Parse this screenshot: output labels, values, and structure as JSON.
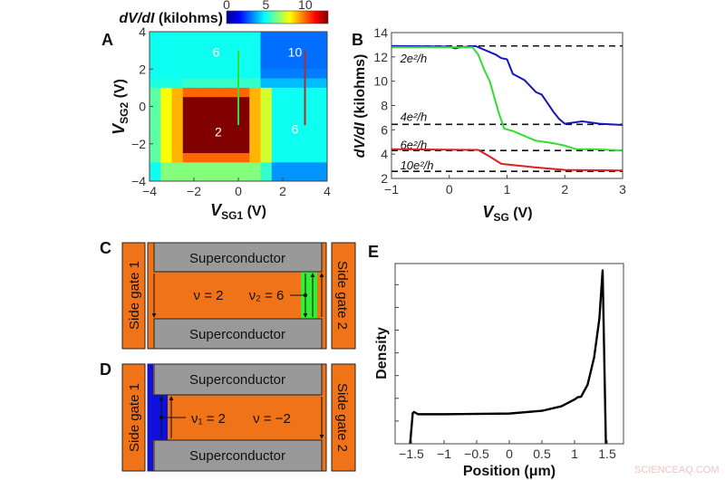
{
  "watermark": "SCIENCEAQ.COM",
  "colors": {
    "orange": "#f07318",
    "gray": "#999999",
    "green": "#33ee33",
    "blue": "#1010dd",
    "red": "#dd2020"
  },
  "chart_data": [
    {
      "panel": "A",
      "type": "heatmap",
      "xlabel": "V_SG1 (V)",
      "xlabel_main": "V",
      "xlabel_sub": "SG1",
      "xlabel_unit": " (V)",
      "ylabel": "V_SG2 (V)",
      "ylabel_main": "V",
      "ylabel_sub": "SG2",
      "ylabel_unit": " (V)",
      "xlim": [
        -4,
        4
      ],
      "ylim": [
        -4,
        4
      ],
      "xticks": [
        "-4",
        "-2",
        "0",
        "2",
        "4"
      ],
      "yticks": [
        "4",
        "2",
        "0",
        "-2",
        "-4"
      ],
      "colorbar": {
        "label": "dV/dI (kilohms)",
        "label_italic": "dV/dI",
        "label_unit": " (kilohms)",
        "range": [
          0,
          12.9
        ],
        "ticks": [
          "0",
          "5",
          "10"
        ],
        "colormap": "jet",
        "placement": "top"
      },
      "grid_step": 0.5,
      "values_rows_top_to_bottom": [
        [
          5,
          5,
          5,
          5,
          5,
          5,
          5,
          5,
          5,
          5,
          3,
          3,
          3,
          3,
          3,
          3
        ],
        [
          5,
          5,
          5,
          5,
          5,
          5,
          5,
          5,
          5,
          5,
          3,
          3,
          3,
          3,
          3,
          3
        ],
        [
          5,
          5,
          5,
          5,
          5,
          5,
          5,
          5,
          5,
          5,
          3,
          3,
          3,
          3,
          3,
          3
        ],
        [
          5,
          5,
          5,
          5,
          5,
          5,
          5,
          5,
          5,
          5,
          3,
          3,
          3,
          3,
          3,
          3
        ],
        [
          5,
          5,
          5,
          5,
          5,
          5,
          5,
          5,
          5,
          5,
          3.2,
          3.2,
          3.2,
          3.2,
          3.2,
          3.2
        ],
        [
          5.2,
          5.2,
          5.2,
          5.5,
          5.5,
          5.5,
          5.5,
          5.5,
          5.5,
          5.5,
          4,
          4,
          4,
          4,
          4,
          4
        ],
        [
          6,
          8,
          9,
          10,
          10,
          10,
          10,
          10,
          10,
          9,
          7.5,
          5,
          5,
          5,
          5,
          5
        ],
        [
          6,
          8,
          9,
          13,
          13,
          13,
          13,
          13,
          13,
          9,
          7.5,
          5,
          5,
          5,
          5,
          5
        ],
        [
          6,
          8,
          9,
          13,
          13,
          13,
          13,
          13,
          13,
          9,
          7.5,
          5,
          5,
          5,
          5,
          5
        ],
        [
          6,
          8,
          9,
          13,
          13,
          13,
          13,
          13,
          13,
          9,
          7.5,
          5,
          5,
          5,
          5,
          5
        ],
        [
          6,
          8,
          9,
          13,
          13,
          13,
          13,
          13,
          13,
          9,
          7.5,
          5,
          5,
          5,
          5,
          5
        ],
        [
          6,
          8,
          9,
          13,
          13,
          13,
          13,
          13,
          13,
          9,
          7.5,
          5,
          5,
          5,
          5,
          5
        ],
        [
          6,
          8,
          9,
          13,
          13,
          13,
          13,
          13,
          13,
          9,
          7.5,
          5,
          5,
          5,
          5,
          5
        ],
        [
          6,
          8,
          9,
          10,
          10,
          10,
          10,
          10,
          10,
          9,
          7.5,
          5,
          5,
          5,
          5,
          5
        ],
        [
          5,
          6.5,
          6.5,
          6.5,
          6.5,
          6.5,
          6.5,
          6.5,
          6.5,
          6.5,
          5.5,
          3.5,
          3.5,
          3.5,
          3.5,
          3.5
        ],
        [
          5,
          6.5,
          6.5,
          6.5,
          6.5,
          6.5,
          6.5,
          6.5,
          6.5,
          6.5,
          5.5,
          3.5,
          3.5,
          3.5,
          3.5,
          3.5
        ]
      ],
      "cuts": [
        {
          "color": "#33dd33",
          "x": 0,
          "y": [
            3,
            -1
          ]
        },
        {
          "color": "#aa3030",
          "x": 3,
          "y": [
            3,
            -1
          ]
        }
      ],
      "annotations": [
        {
          "text": "6",
          "x": -1,
          "y": 2.9
        },
        {
          "text": "10",
          "x": 2.55,
          "y": 2.9
        },
        {
          "text": "2",
          "x": -0.9,
          "y": -1.35
        },
        {
          "text": "6",
          "x": 2.55,
          "y": -1.2
        }
      ]
    },
    {
      "panel": "B",
      "type": "line",
      "xlabel_main": "V",
      "xlabel_sub": "SG",
      "xlabel_unit": " (V)",
      "ylabel": "dV/dI (kilohms)",
      "ylabel_italic": "dV/dI",
      "ylabel_unit": " (kilohms)",
      "xlim": [
        -1,
        3
      ],
      "ylim": [
        2,
        14
      ],
      "xticks": [
        "-1",
        "0",
        "1",
        "2",
        "3"
      ],
      "yticks": [
        "2",
        "4",
        "6",
        "8",
        "10",
        "12",
        "14"
      ],
      "series": [
        {
          "color": "#1515c0",
          "points": [
            [
              -1,
              12.9
            ],
            [
              0,
              12.85
            ],
            [
              0.1,
              12.7
            ],
            [
              0.2,
              12.8
            ],
            [
              0.45,
              12.9
            ],
            [
              0.6,
              12.6
            ],
            [
              0.8,
              12.2
            ],
            [
              0.9,
              11.9
            ],
            [
              1.0,
              11.8
            ],
            [
              1.1,
              10.6
            ],
            [
              1.3,
              10.1
            ],
            [
              1.5,
              9.1
            ],
            [
              1.6,
              8.9
            ],
            [
              1.7,
              8.2
            ],
            [
              1.8,
              7.5
            ],
            [
              1.9,
              6.9
            ],
            [
              2.0,
              6.5
            ],
            [
              2.3,
              6.7
            ],
            [
              2.6,
              6.5
            ],
            [
              3,
              6.4
            ]
          ]
        },
        {
          "color": "#33dd33",
          "points": [
            [
              -1,
              12.8
            ],
            [
              0.4,
              12.8
            ],
            [
              0.5,
              12.2
            ],
            [
              0.6,
              11
            ],
            [
              0.7,
              10
            ],
            [
              0.85,
              7.5
            ],
            [
              0.95,
              6.1
            ],
            [
              1.1,
              5.9
            ],
            [
              1.3,
              5.5
            ],
            [
              1.5,
              5.1
            ],
            [
              1.8,
              4.9
            ],
            [
              2.0,
              4.7
            ],
            [
              2.2,
              4.4
            ],
            [
              2.5,
              4.4
            ],
            [
              3,
              4.3
            ]
          ]
        },
        {
          "color": "#dd2020",
          "points": [
            [
              -1,
              4.4
            ],
            [
              0.5,
              4.35
            ],
            [
              0.7,
              3.8
            ],
            [
              0.9,
              3.2
            ],
            [
              1.1,
              3.1
            ],
            [
              1.5,
              2.9
            ],
            [
              2.0,
              2.7
            ],
            [
              3,
              2.65
            ]
          ]
        }
      ],
      "reference_lines": [
        {
          "y": 12.9,
          "label": "2e²/h",
          "label_x": -0.85,
          "label_y": 11.9
        },
        {
          "y": 6.45,
          "label": "4e²/h",
          "label_x": -0.85,
          "label_y": 7.1
        },
        {
          "y": 4.3,
          "label": "6e²/h",
          "label_x": -0.85,
          "label_y": 4.8
        },
        {
          "y": 2.58,
          "label": "10e²/h",
          "label_x": -0.85,
          "label_y": 3.1
        }
      ]
    },
    {
      "panel": "E",
      "type": "line",
      "xlabel": "Position (μm)",
      "ylabel": "Density",
      "xlim": [
        -1.75,
        1.75
      ],
      "ylim": [
        0,
        7.93
      ],
      "xticks": [
        "-1.5",
        "-1",
        "-0.5",
        "0",
        "0.5",
        "1",
        "1.5"
      ],
      "yticks_unlabeled": [
        1,
        2,
        3,
        4,
        5,
        6,
        7
      ],
      "series": [
        {
          "color": "#000000",
          "points": [
            [
              -1.52,
              0
            ],
            [
              -1.48,
              1.35
            ],
            [
              -1.46,
              1.4
            ],
            [
              -1.4,
              1.3
            ],
            [
              -1,
              1.3
            ],
            [
              0,
              1.33
            ],
            [
              0.5,
              1.45
            ],
            [
              0.8,
              1.65
            ],
            [
              1.0,
              1.95
            ],
            [
              1.05,
              2.05
            ],
            [
              1.1,
              2.07
            ],
            [
              1.2,
              2.6
            ],
            [
              1.3,
              3.8
            ],
            [
              1.38,
              5.5
            ],
            [
              1.43,
              7.63
            ],
            [
              1.48,
              0
            ]
          ]
        }
      ]
    }
  ],
  "panels": {
    "a": "A",
    "b": "B",
    "c": "C",
    "d": "D",
    "e": "E"
  },
  "diagram_c": {
    "side_gate_1": "Side gate 1",
    "side_gate_2": "Side gate 2",
    "sc_top": "Superconductor",
    "sc_bottom": "Superconductor",
    "nu_bulk": "ν = 2",
    "nu_edge": "ν₂ = 6"
  },
  "diagram_d": {
    "side_gate_1": "Side gate 1",
    "side_gate_2": "Side gate 2",
    "sc_top": "Superconductor",
    "sc_bottom": "Superconductor",
    "nu_edge": "ν₁ = 2",
    "nu_bulk": "ν = −2"
  }
}
